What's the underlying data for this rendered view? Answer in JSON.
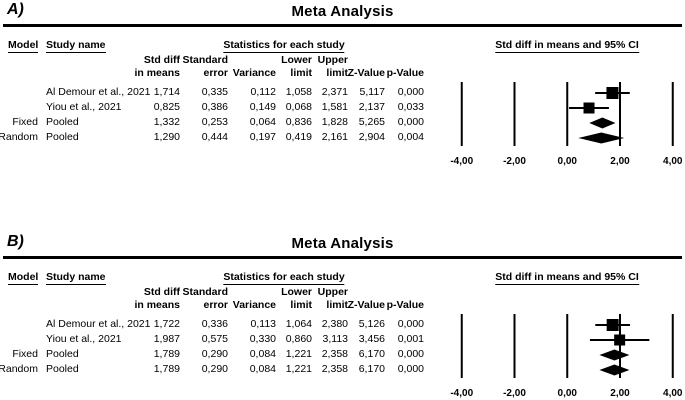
{
  "figure": {
    "ink_color": "#000000",
    "background": "#ffffff",
    "panels": [
      {
        "label": "A)",
        "title": "Meta Analysis",
        "headers": {
          "model": "Model",
          "study": "Study name",
          "stats": "Statistics for each study",
          "plot": "Std diff in means and 95% CI"
        },
        "col_headers": [
          "Std diff\nin means",
          "Standard\nerror",
          "Variance",
          "Lower\nlimit",
          "Upper\nlimit",
          "Z-Value",
          "p-Value"
        ],
        "rows": [
          {
            "model": "",
            "study": "Al Demour et al., 2021",
            "cells": [
              "1,714",
              "0,335",
              "0,112",
              "1,058",
              "2,371",
              "5,117",
              "0,000"
            ]
          },
          {
            "model": "",
            "study": "Yiou et al., 2021",
            "cells": [
              "0,825",
              "0,386",
              "0,149",
              "0,068",
              "1,581",
              "2,137",
              "0,033"
            ]
          },
          {
            "model": "Fixed",
            "study": "Pooled",
            "cells": [
              "1,332",
              "0,253",
              "0,064",
              "0,836",
              "1,828",
              "5,265",
              "0,000"
            ]
          },
          {
            "model": "Random",
            "study": "Pooled",
            "cells": [
              "1,290",
              "0,444",
              "0,197",
              "0,419",
              "2,161",
              "2,904",
              "0,004"
            ]
          }
        ],
        "axis_tick_labels": [
          "-4,00",
          "-2,00",
          "0,00",
          "2,00",
          "4,00"
        ]
      },
      {
        "label": "B)",
        "title": "Meta Analysis",
        "headers": {
          "model": "Model",
          "study": "Study name",
          "stats": "Statistics for each study",
          "plot": "Std diff in means and 95% CI"
        },
        "col_headers": [
          "Std diff\nin means",
          "Standard\nerror",
          "Variance",
          "Lower\nlimit",
          "Upper\nlimit",
          "Z-Value",
          "p-Value"
        ],
        "rows": [
          {
            "model": "",
            "study": "Al Demour et al., 2021",
            "cells": [
              "1,722",
              "0,336",
              "0,113",
              "1,064",
              "2,380",
              "5,126",
              "0,000"
            ]
          },
          {
            "model": "",
            "study": "Yiou et al., 2021",
            "cells": [
              "1,987",
              "0,575",
              "0,330",
              "0,860",
              "3,113",
              "3,456",
              "0,001"
            ]
          },
          {
            "model": "Fixed",
            "study": "Pooled",
            "cells": [
              "1,789",
              "0,290",
              "0,084",
              "1,221",
              "2,358",
              "6,170",
              "0,000"
            ]
          },
          {
            "model": "Random",
            "study": "Pooled",
            "cells": [
              "1,789",
              "0,290",
              "0,084",
              "1,221",
              "2,358",
              "6,170",
              "0,000"
            ]
          }
        ],
        "axis_tick_labels": [
          "-4,00",
          "-2,00",
          "0,00",
          "2,00",
          "4,00"
        ]
      }
    ]
  },
  "chart_data": [
    {
      "type": "scatter",
      "variant": "forest_plot",
      "panel": "A",
      "title": "Meta Analysis",
      "xlabel": "Std diff in means and 95% CI",
      "xlim": [
        -4,
        4
      ],
      "x_ticks": [
        -4,
        -2,
        0,
        2,
        4
      ],
      "grid": "vertical_reference_lines_at_ticks",
      "series": [
        {
          "name": "Al Demour et al., 2021",
          "model": "",
          "marker": "square",
          "marker_size": 12,
          "est": 1.714,
          "se": 0.335,
          "variance": 0.112,
          "ci": [
            1.058,
            2.371
          ],
          "z": 5.117,
          "p": 0.0
        },
        {
          "name": "Yiou et al., 2021",
          "model": "",
          "marker": "square",
          "marker_size": 11,
          "est": 0.825,
          "se": 0.386,
          "variance": 0.149,
          "ci": [
            0.068,
            1.581
          ],
          "z": 2.137,
          "p": 0.033
        },
        {
          "name": "Pooled",
          "model": "Fixed",
          "marker": "diamond",
          "est": 1.332,
          "se": 0.253,
          "variance": 0.064,
          "ci": [
            0.836,
            1.828
          ],
          "z": 5.265,
          "p": 0.0
        },
        {
          "name": "Pooled",
          "model": "Random",
          "marker": "diamond",
          "est": 1.29,
          "se": 0.444,
          "variance": 0.197,
          "ci": [
            0.419,
            2.161
          ],
          "z": 2.904,
          "p": 0.004
        }
      ]
    },
    {
      "type": "scatter",
      "variant": "forest_plot",
      "panel": "B",
      "title": "Meta Analysis",
      "xlabel": "Std diff in means and 95% CI",
      "xlim": [
        -4,
        4
      ],
      "x_ticks": [
        -4,
        -2,
        0,
        2,
        4
      ],
      "grid": "vertical_reference_lines_at_ticks",
      "series": [
        {
          "name": "Al Demour et al., 2021",
          "model": "",
          "marker": "square",
          "marker_size": 12,
          "est": 1.722,
          "se": 0.336,
          "variance": 0.113,
          "ci": [
            1.064,
            2.38
          ],
          "z": 5.126,
          "p": 0.0
        },
        {
          "name": "Yiou et al., 2021",
          "model": "",
          "marker": "square",
          "marker_size": 11,
          "est": 1.987,
          "se": 0.575,
          "variance": 0.33,
          "ci": [
            0.86,
            3.113
          ],
          "z": 3.456,
          "p": 0.001
        },
        {
          "name": "Pooled",
          "model": "Fixed",
          "marker": "diamond",
          "est": 1.789,
          "se": 0.29,
          "variance": 0.084,
          "ci": [
            1.221,
            2.358
          ],
          "z": 6.17,
          "p": 0.0
        },
        {
          "name": "Pooled",
          "model": "Random",
          "marker": "diamond",
          "est": 1.789,
          "se": 0.29,
          "variance": 0.084,
          "ci": [
            1.221,
            2.358
          ],
          "z": 6.17,
          "p": 0.0
        }
      ]
    }
  ]
}
